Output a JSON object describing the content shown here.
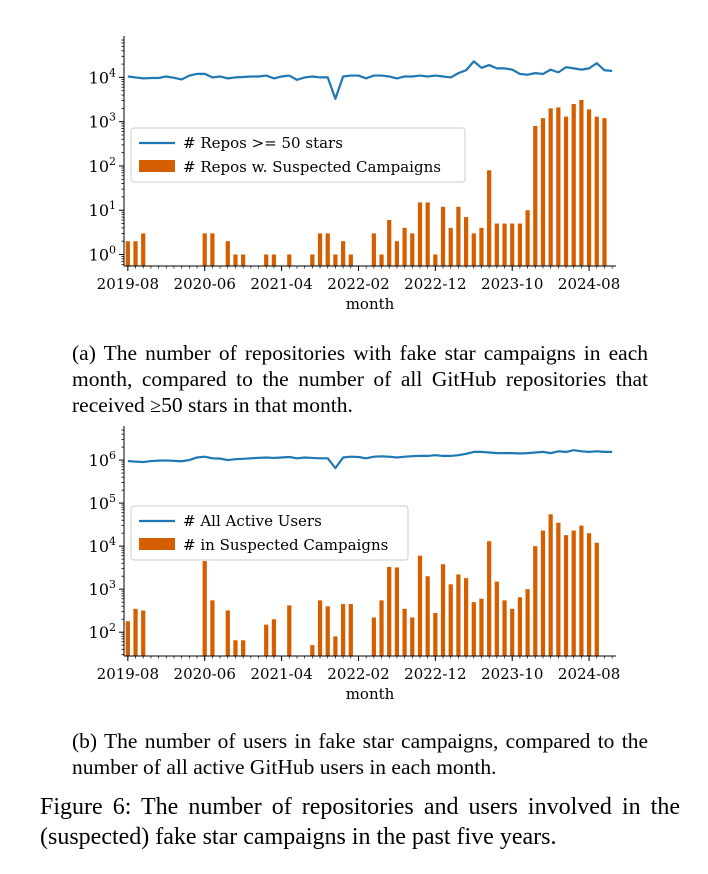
{
  "figure": {
    "caption": "Figure 6: The number of repositories and users involved in the (suspected) fake star campaigns in the past five years."
  },
  "colors": {
    "line": "#1f77b4",
    "bar": "#d55e00"
  },
  "subcaptions": {
    "a_prefix": "(a) The number of repositories with fake star campaigns in each month, compared to the number of all GitHub repositories that received ",
    "a_symbol": "≥",
    "a_suffix": "50 stars in that month.",
    "b": "(b) The number of users in fake star campaigns, compared to the number of all active GitHub users in each month."
  },
  "chart_data": [
    {
      "type": "bar",
      "id": "a",
      "xlabel": "month",
      "ylabel": "",
      "yscale": "log",
      "ylim": [
        0.55,
        70000
      ],
      "yticks": [
        {
          "v": 1,
          "exp": "0"
        },
        {
          "v": 10,
          "exp": "1"
        },
        {
          "v": 100,
          "exp": "2"
        },
        {
          "v": 1000,
          "exp": "3"
        },
        {
          "v": 10000,
          "exp": "4"
        }
      ],
      "xticks": [
        {
          "i": 0,
          "label": "2019-08"
        },
        {
          "i": 10,
          "label": "2020-06"
        },
        {
          "i": 20,
          "label": "2021-04"
        },
        {
          "i": 30,
          "label": "2022-02"
        },
        {
          "i": 40,
          "label": "2022-12"
        },
        {
          "i": 50,
          "label": "2023-10"
        },
        {
          "i": 60,
          "label": "2024-08"
        }
      ],
      "x_start": "2019-08",
      "x_end": "2024-09",
      "legend_position": "center-left",
      "series": [
        {
          "name": "# Repos >= 50 stars",
          "kind": "line",
          "values": [
            10500,
            10000,
            9500,
            9700,
            9700,
            10500,
            9800,
            9000,
            11000,
            12000,
            12000,
            10000,
            10500,
            9500,
            10000,
            10200,
            10500,
            10500,
            11000,
            9500,
            10500,
            11000,
            8800,
            10000,
            10500,
            10000,
            10000,
            3300,
            10500,
            11000,
            11000,
            9500,
            11000,
            11000,
            10500,
            9500,
            10500,
            10500,
            11000,
            10500,
            11000,
            10500,
            10000,
            12500,
            14500,
            23000,
            16500,
            19000,
            16000,
            16000,
            15000,
            12000,
            11500,
            12500,
            12000,
            15000,
            13000,
            17000,
            16000,
            15000,
            16000,
            21000,
            14500,
            14000
          ]
        },
        {
          "name": "# Repos w. Suspected Campaigns",
          "kind": "bar",
          "values": [
            2,
            2,
            3,
            0,
            0,
            0,
            0,
            0,
            0,
            0,
            3,
            3,
            0,
            2,
            1,
            1,
            0,
            0,
            1,
            1,
            0,
            1,
            0,
            0,
            1,
            3,
            3,
            1,
            2,
            1,
            0,
            0,
            3,
            1,
            6,
            2,
            4,
            3,
            15,
            15,
            1,
            12,
            4,
            12,
            7,
            3,
            4,
            80,
            5,
            5,
            5,
            5,
            10,
            800,
            1200,
            2000,
            2100,
            1300,
            2500,
            3100,
            1900,
            1300,
            1200,
            0
          ]
        }
      ]
    },
    {
      "type": "bar",
      "id": "b",
      "xlabel": "month",
      "ylabel": "",
      "yscale": "log",
      "ylim": [
        28,
        5000000
      ],
      "yticks": [
        {
          "v": 100,
          "exp": "2"
        },
        {
          "v": 1000,
          "exp": "3"
        },
        {
          "v": 10000,
          "exp": "4"
        },
        {
          "v": 100000,
          "exp": "5"
        },
        {
          "v": 1000000,
          "exp": "6"
        }
      ],
      "xticks": [
        {
          "i": 0,
          "label": "2019-08"
        },
        {
          "i": 10,
          "label": "2020-06"
        },
        {
          "i": 20,
          "label": "2021-04"
        },
        {
          "i": 30,
          "label": "2022-02"
        },
        {
          "i": 40,
          "label": "2022-12"
        },
        {
          "i": 50,
          "label": "2023-10"
        },
        {
          "i": 60,
          "label": "2024-08"
        }
      ],
      "x_start": "2019-08",
      "x_end": "2024-09",
      "legend_position": "center-left",
      "series": [
        {
          "name": "# All Active Users",
          "kind": "line",
          "values": [
            950000,
            920000,
            900000,
            950000,
            970000,
            980000,
            960000,
            940000,
            1000000,
            1150000,
            1200000,
            1100000,
            1080000,
            1000000,
            1050000,
            1070000,
            1100000,
            1130000,
            1150000,
            1120000,
            1150000,
            1180000,
            1100000,
            1150000,
            1120000,
            1100000,
            1100000,
            650000,
            1150000,
            1200000,
            1180000,
            1100000,
            1200000,
            1220000,
            1200000,
            1150000,
            1200000,
            1230000,
            1250000,
            1250000,
            1300000,
            1250000,
            1250000,
            1300000,
            1400000,
            1550000,
            1550000,
            1500000,
            1450000,
            1450000,
            1450000,
            1420000,
            1450000,
            1500000,
            1550000,
            1450000,
            1600000,
            1550000,
            1700000,
            1600000,
            1550000,
            1600000,
            1550000,
            1550000
          ]
        },
        {
          "name": "# in Suspected Campaigns",
          "kind": "bar",
          "values": [
            180,
            350,
            320,
            0,
            0,
            0,
            0,
            0,
            0,
            0,
            4500,
            550,
            0,
            320,
            65,
            65,
            0,
            0,
            150,
            200,
            0,
            420,
            0,
            0,
            50,
            550,
            400,
            80,
            450,
            450,
            0,
            0,
            220,
            550,
            3300,
            3200,
            350,
            220,
            6000,
            2000,
            280,
            3800,
            1300,
            2200,
            1800,
            500,
            600,
            13000,
            1500,
            550,
            350,
            650,
            1000,
            10000,
            23000,
            55000,
            35000,
            18000,
            23000,
            30000,
            20000,
            12000,
            0,
            0
          ]
        }
      ]
    }
  ]
}
